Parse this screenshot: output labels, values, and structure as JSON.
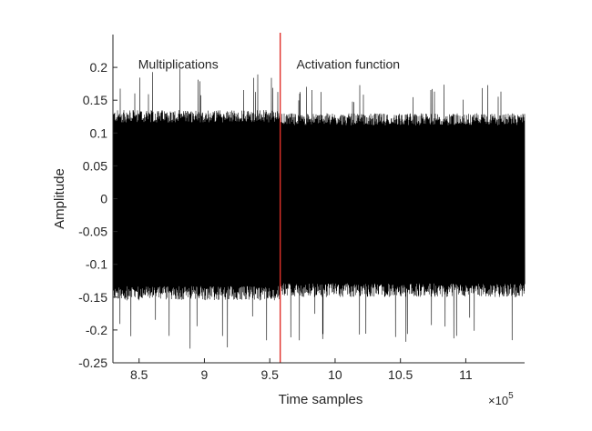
{
  "chart_data": {
    "type": "line",
    "title": "",
    "xlabel": "Time samples",
    "ylabel": "Amplitude",
    "x_exponent_label": "×10",
    "x_exponent_power": "5",
    "xlim": [
      8.3,
      11.45
    ],
    "ylim": [
      -0.25,
      0.25
    ],
    "x_scale_factor": 100000,
    "x_ticks": [
      {
        "value": 8.5,
        "label": "8.5"
      },
      {
        "value": 9,
        "label": "9"
      },
      {
        "value": 9.5,
        "label": "9.5"
      },
      {
        "value": 10,
        "label": "10"
      },
      {
        "value": 10.5,
        "label": "10.5"
      },
      {
        "value": 11,
        "label": "11"
      }
    ],
    "y_ticks": [
      {
        "value": 0.2,
        "label": "0.2"
      },
      {
        "value": 0.15,
        "label": "0.15"
      },
      {
        "value": 0.1,
        "label": "0.1"
      },
      {
        "value": 0.05,
        "label": "0.05"
      },
      {
        "value": 0,
        "label": "0"
      },
      {
        "value": -0.05,
        "label": "-0.05"
      },
      {
        "value": -0.1,
        "label": "-0.1"
      },
      {
        "value": -0.15,
        "label": "-0.15"
      },
      {
        "value": -0.2,
        "label": "-0.2"
      },
      {
        "value": -0.25,
        "label": "-0.25"
      }
    ],
    "grid": false,
    "series_color": "#000000",
    "divider": {
      "x": 9.58,
      "color": "#e0302a"
    },
    "annotations": [
      {
        "text": "Multiplications",
        "x": 8.8,
        "y": 0.205
      },
      {
        "text": "Activation function",
        "x": 10.1,
        "y": 0.205
      }
    ],
    "signal": {
      "x_start": 8.3,
      "x_end": 11.45,
      "segments": [
        {
          "x_start": 8.3,
          "x_end": 9.58,
          "envelope_upper": 0.135,
          "envelope_lower": -0.155,
          "peak_max": 0.2,
          "peak_min": -0.23
        },
        {
          "x_start": 9.58,
          "x_end": 11.45,
          "envelope_upper": 0.13,
          "envelope_lower": -0.15,
          "peak_max": 0.18,
          "peak_min": -0.22
        }
      ]
    }
  }
}
